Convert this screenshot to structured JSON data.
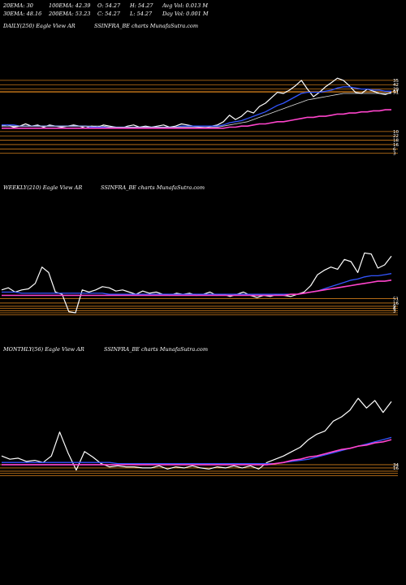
{
  "header": {
    "ema20": "20EMA: 30",
    "ema100": "100EMA: 42.39",
    "open": "O: 54.27",
    "high": "H: 54.27",
    "avg_vol": "Avg Vol: 0.013 M",
    "ema30": "30EMA: 48.16",
    "ema200": "200EMA: 53.23",
    "close": "C: 54.27",
    "low": "L: 54.27",
    "day_vol": "Day Vol: 0.001 M"
  },
  "panels": {
    "daily": {
      "left": "DAILY(250) Eagle  View  AR",
      "right": "SSINFRA_BE charts MunafaSutra.com"
    },
    "weekly": {
      "left": "WEEKLY(210) Eagle  View  AR",
      "right": "SSINFRA_BE charts MunafaSutra.com"
    },
    "monthly": {
      "left": "MONTHLY(56) Eagle  View  AR",
      "right": "SSINFRA_BE charts MunafaSutra.com"
    }
  },
  "colors": {
    "background": "#000000",
    "price": "#ffffff",
    "ema_blue": "#3355ff",
    "ema_pink": "#ff44cc",
    "ema_white": "#dddddd",
    "level_orange": "#cc7a1a"
  },
  "chart_data": [
    {
      "type": "line",
      "name": "daily",
      "ylim": [
        0,
        100
      ],
      "levels": [
        68,
        64,
        60,
        58,
        57,
        21,
        17,
        13,
        9,
        5,
        1
      ],
      "right_labels": [
        "35",
        "42",
        "29",
        "47",
        "51",
        "10",
        "22",
        "18",
        "16",
        "6",
        "3"
      ],
      "series": [
        {
          "role": "price",
          "values": [
            26,
            27,
            25,
            26,
            28,
            26,
            27,
            25,
            27,
            26,
            25,
            26,
            27,
            26,
            24,
            26,
            25,
            27,
            26,
            25,
            24,
            26,
            27,
            25,
            26,
            25,
            26,
            27,
            25,
            26,
            28,
            27,
            26,
            25,
            24,
            26,
            27,
            30,
            36,
            32,
            35,
            40,
            38,
            44,
            47,
            52,
            57,
            56,
            59,
            63,
            68,
            60,
            53,
            57,
            62,
            66,
            70,
            68,
            63,
            57,
            56,
            60,
            58,
            56,
            55,
            57
          ]
        },
        {
          "role": "ema-blue",
          "values": [
            27,
            27,
            27,
            26,
            26,
            26,
            26,
            26,
            26,
            26,
            26,
            26,
            26,
            26,
            26,
            25,
            25,
            25,
            25,
            25,
            25,
            25,
            25,
            25,
            25,
            25,
            25,
            25,
            25,
            25,
            26,
            26,
            26,
            26,
            26,
            26,
            26,
            27,
            29,
            30,
            31,
            33,
            35,
            37,
            39,
            42,
            45,
            47,
            50,
            53,
            56,
            57,
            57,
            57,
            58,
            59,
            61,
            62,
            62,
            61,
            60,
            60,
            59,
            59,
            58,
            58
          ]
        },
        {
          "role": "ema-white",
          "values": [
            26,
            26,
            26,
            26,
            26,
            26,
            26,
            26,
            26,
            26,
            26,
            26,
            26,
            26,
            26,
            26,
            26,
            26,
            25,
            25,
            25,
            25,
            25,
            25,
            25,
            25,
            25,
            25,
            25,
            25,
            25,
            25,
            25,
            25,
            25,
            25,
            25,
            26,
            27,
            28,
            29,
            30,
            32,
            34,
            36,
            38,
            40,
            42,
            44,
            46,
            48,
            50,
            51,
            52,
            53,
            54,
            55,
            56,
            56,
            56,
            56,
            56,
            56,
            56,
            56,
            56
          ]
        },
        {
          "role": "ema-pink",
          "values": [
            24,
            24,
            24,
            24,
            24,
            24,
            24,
            24,
            24,
            24,
            24,
            24,
            24,
            24,
            24,
            24,
            24,
            24,
            24,
            24,
            24,
            24,
            24,
            24,
            24,
            24,
            24,
            24,
            24,
            24,
            24,
            24,
            24,
            24,
            24,
            24,
            24,
            24,
            25,
            25,
            26,
            26,
            27,
            28,
            28,
            29,
            30,
            30,
            31,
            32,
            33,
            34,
            34,
            35,
            35,
            36,
            37,
            37,
            38,
            38,
            39,
            39,
            40,
            40,
            41,
            41
          ]
        }
      ]
    },
    {
      "type": "line",
      "name": "weekly",
      "ylim": [
        0,
        100
      ],
      "levels": [
        16,
        12,
        9,
        7,
        5,
        3,
        1
      ],
      "right_labels": [
        "51",
        "16",
        "9",
        "6",
        "3"
      ],
      "series": [
        {
          "role": "price",
          "values": [
            24,
            26,
            22,
            24,
            25,
            30,
            45,
            40,
            22,
            20,
            4,
            3,
            24,
            22,
            24,
            27,
            26,
            23,
            24,
            22,
            20,
            23,
            21,
            22,
            20,
            19,
            21,
            20,
            21,
            19,
            20,
            22,
            19,
            20,
            18,
            20,
            22,
            19,
            17,
            19,
            18,
            20,
            19,
            18,
            20,
            22,
            28,
            38,
            42,
            45,
            43,
            52,
            50,
            40,
            58,
            57,
            44,
            47,
            55
          ]
        },
        {
          "role": "ema-blue",
          "values": [
            22,
            22,
            22,
            21,
            21,
            21,
            21,
            21,
            21,
            21,
            21,
            21,
            21,
            21,
            21,
            21,
            20,
            20,
            20,
            20,
            20,
            20,
            20,
            20,
            20,
            20,
            20,
            20,
            20,
            20,
            20,
            20,
            20,
            20,
            20,
            20,
            20,
            20,
            20,
            20,
            20,
            20,
            20,
            20,
            20,
            21,
            22,
            23,
            25,
            27,
            29,
            31,
            33,
            34,
            36,
            37,
            37,
            38,
            39
          ]
        },
        {
          "role": "ema-pink",
          "values": [
            19,
            19,
            19,
            19,
            19,
            19,
            19,
            19,
            19,
            19,
            19,
            19,
            19,
            19,
            19,
            19,
            19,
            19,
            19,
            19,
            19,
            19,
            19,
            19,
            19,
            19,
            19,
            19,
            19,
            19,
            19,
            19,
            19,
            19,
            19,
            19,
            19,
            19,
            19,
            19,
            19,
            19,
            19,
            20,
            20,
            21,
            22,
            23,
            24,
            25,
            26,
            27,
            28,
            29,
            30,
            31,
            32,
            32,
            33
          ]
        }
      ]
    },
    {
      "type": "line",
      "name": "monthly",
      "ylim": [
        0,
        100
      ],
      "levels": [
        12,
        9,
        6,
        4,
        2
      ],
      "right_labels": [
        "34",
        "16"
      ],
      "series": [
        {
          "role": "price",
          "values": [
            20,
            17,
            18,
            15,
            16,
            14,
            20,
            42,
            23,
            7,
            24,
            19,
            13,
            10,
            11,
            10,
            10,
            9,
            9,
            11,
            8,
            10,
            9,
            11,
            9,
            8,
            10,
            9,
            11,
            9,
            11,
            8,
            14,
            17,
            20,
            24,
            28,
            35,
            40,
            43,
            52,
            56,
            62,
            73,
            64,
            71,
            60,
            70
          ]
        },
        {
          "role": "ema-blue",
          "values": [
            14,
            14,
            14,
            14,
            14,
            14,
            14,
            14,
            14,
            14,
            14,
            14,
            14,
            14,
            13,
            13,
            13,
            13,
            13,
            13,
            13,
            13,
            13,
            13,
            13,
            13,
            13,
            13,
            13,
            13,
            13,
            13,
            13,
            13,
            14,
            15,
            16,
            17,
            19,
            21,
            23,
            25,
            27,
            29,
            31,
            33,
            35,
            37
          ]
        },
        {
          "role": "ema-pink",
          "values": [
            12,
            12,
            12,
            12,
            12,
            12,
            12,
            12,
            12,
            12,
            12,
            12,
            12,
            12,
            12,
            12,
            12,
            12,
            12,
            12,
            12,
            12,
            12,
            12,
            12,
            12,
            12,
            12,
            12,
            12,
            12,
            12,
            12,
            13,
            14,
            16,
            17,
            19,
            20,
            22,
            24,
            26,
            27,
            29,
            30,
            32,
            33,
            35
          ]
        }
      ]
    }
  ]
}
